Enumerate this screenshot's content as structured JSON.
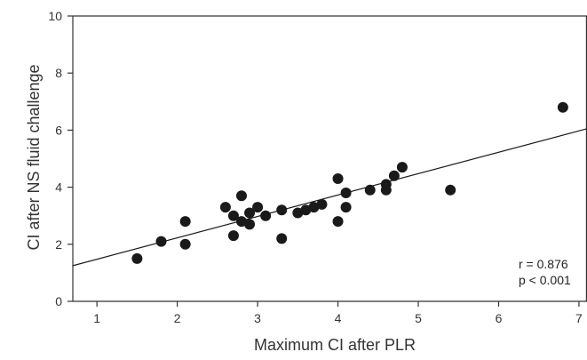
{
  "chart_data": {
    "type": "scatter",
    "xlabel": "Maximum CI after PLR",
    "ylabel": "CI after NS fluid challenge",
    "xlim": [
      0.7,
      7.1
    ],
    "ylim": [
      0,
      10
    ],
    "xticks": [
      1,
      2,
      3,
      4,
      5,
      6,
      7
    ],
    "yticks": [
      0,
      2,
      4,
      6,
      8,
      10
    ],
    "grid": false,
    "points": [
      {
        "x": 1.5,
        "y": 1.5
      },
      {
        "x": 1.8,
        "y": 2.1
      },
      {
        "x": 2.1,
        "y": 2.8
      },
      {
        "x": 2.1,
        "y": 2.0
      },
      {
        "x": 2.6,
        "y": 3.3
      },
      {
        "x": 2.7,
        "y": 3.0
      },
      {
        "x": 2.7,
        "y": 2.3
      },
      {
        "x": 2.8,
        "y": 3.7
      },
      {
        "x": 2.8,
        "y": 2.8
      },
      {
        "x": 2.9,
        "y": 3.1
      },
      {
        "x": 2.9,
        "y": 2.7
      },
      {
        "x": 3.0,
        "y": 3.3
      },
      {
        "x": 3.1,
        "y": 3.0
      },
      {
        "x": 3.3,
        "y": 3.2
      },
      {
        "x": 3.3,
        "y": 2.2
      },
      {
        "x": 3.5,
        "y": 3.1
      },
      {
        "x": 3.6,
        "y": 3.2
      },
      {
        "x": 3.7,
        "y": 3.3
      },
      {
        "x": 3.8,
        "y": 3.4
      },
      {
        "x": 4.0,
        "y": 4.3
      },
      {
        "x": 4.0,
        "y": 2.8
      },
      {
        "x": 4.1,
        "y": 3.8
      },
      {
        "x": 4.1,
        "y": 3.3
      },
      {
        "x": 4.4,
        "y": 3.9
      },
      {
        "x": 4.6,
        "y": 4.1
      },
      {
        "x": 4.6,
        "y": 3.9
      },
      {
        "x": 4.7,
        "y": 4.4
      },
      {
        "x": 4.8,
        "y": 4.7
      },
      {
        "x": 5.4,
        "y": 3.9
      },
      {
        "x": 6.8,
        "y": 6.8
      }
    ],
    "regression_line": {
      "x": [
        0.7,
        7.1
      ],
      "y": [
        1.25,
        6.05
      ]
    },
    "annotations": [
      "r = 0.876",
      "p < 0.001"
    ],
    "colors": {
      "points": "#1a1a1a",
      "line": "#1a1a1a",
      "axes": "#333333"
    }
  }
}
